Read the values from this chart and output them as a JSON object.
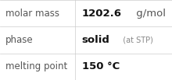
{
  "rows": [
    {
      "label": "molar mass",
      "value_parts": [
        {
          "text": "1202.6",
          "bold": true,
          "size": 9.5
        },
        {
          "text": " g/mol",
          "bold": false,
          "size": 9.5
        }
      ]
    },
    {
      "label": "phase",
      "value_parts": [
        {
          "text": "solid",
          "bold": true,
          "size": 9.5
        },
        {
          "text": "  (at STP)",
          "bold": false,
          "size": 7.0
        }
      ]
    },
    {
      "label": "melting point",
      "value_parts": [
        {
          "text": "150 °C",
          "bold": true,
          "size": 9.5
        }
      ]
    }
  ],
  "background_color": "#ffffff",
  "border_color": "#cccccc",
  "label_color": "#555555",
  "value_color": "#111111",
  "stp_color": "#888888",
  "label_fontsize": 8.5,
  "col_split": 0.435,
  "fig_width": 2.2,
  "fig_height": 1.03,
  "dpi": 100
}
